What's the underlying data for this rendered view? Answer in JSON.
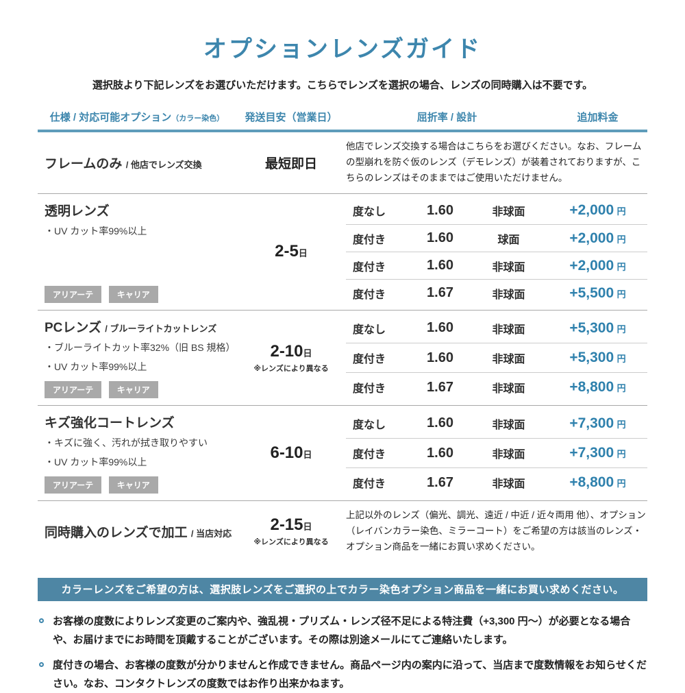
{
  "colors": {
    "accent": "#3d86ad",
    "price": "#2f81ad",
    "banner_bg": "#4e86a4",
    "badge_bg": "#a9a9a9"
  },
  "page": {
    "title": "オプションレンズガイド",
    "subtitle": "選択肢より下記レンズをお選びいただけます。こちらでレンズを選択の場合、レンズの同時購入は不要です。"
  },
  "table": {
    "yen": "円",
    "headers": {
      "spec": "仕様 / 対応可能オプション",
      "spec_small": "（カラー染色）",
      "shipping": "発送目安（営業日）",
      "refraction": "屈折率 / 設計",
      "price": "追加料金"
    },
    "sections": [
      {
        "name": "フレームのみ",
        "suffix": "/ 他店でレンズ交換",
        "shipping_main": "最短即日",
        "note": "他店でレンズ交換する場合はこちらをお選びください。なお、フレームの型崩れを防ぐ仮のレンズ（デモレンズ）が装着されておりますが、こちらのレンズはそのままではご使用いただけません。"
      },
      {
        "name": "透明レンズ",
        "bullets": [
          "・UV カット率99%以上"
        ],
        "badges": [
          "アリアーテ",
          "キャリア"
        ],
        "shipping_main": "2-5",
        "shipping_unit": "日",
        "rows": [
          {
            "power": "度なし",
            "index": "1.60",
            "design": "非球面",
            "price": "+2,000"
          },
          {
            "power": "度付き",
            "index": "1.60",
            "design": "球面",
            "price": "+2,000"
          },
          {
            "power": "度付き",
            "index": "1.60",
            "design": "非球面",
            "price": "+2,000"
          },
          {
            "power": "度付き",
            "index": "1.67",
            "design": "非球面",
            "price": "+5,500"
          }
        ]
      },
      {
        "name": "PCレンズ",
        "suffix": "/ ブルーライトカットレンズ",
        "bullets": [
          "・ブルーライトカット率32%（旧 BS 規格）",
          "・UV カット率99%以上"
        ],
        "badges": [
          "アリアーテ",
          "キャリア"
        ],
        "shipping_main": "2-10",
        "shipping_unit": "日",
        "shipping_note": "※レンズにより異なる",
        "rows": [
          {
            "power": "度なし",
            "index": "1.60",
            "design": "非球面",
            "price": "+5,300"
          },
          {
            "power": "度付き",
            "index": "1.60",
            "design": "非球面",
            "price": "+5,300"
          },
          {
            "power": "度付き",
            "index": "1.67",
            "design": "非球面",
            "price": "+8,800"
          }
        ]
      },
      {
        "name": "キズ強化コートレンズ",
        "bullets": [
          "・キズに強く、汚れが拭き取りやすい",
          "・UV カット率99%以上"
        ],
        "badges": [
          "アリアーテ",
          "キャリア"
        ],
        "shipping_main": "6-10",
        "shipping_unit": "日",
        "rows": [
          {
            "power": "度なし",
            "index": "1.60",
            "design": "非球面",
            "price": "+7,300"
          },
          {
            "power": "度付き",
            "index": "1.60",
            "design": "非球面",
            "price": "+7,300"
          },
          {
            "power": "度付き",
            "index": "1.67",
            "design": "非球面",
            "price": "+8,800"
          }
        ]
      },
      {
        "name": "同時購入のレンズで加工",
        "suffix": "/ 当店対応",
        "shipping_main": "2-15",
        "shipping_unit": "日",
        "shipping_note": "※レンズにより異なる",
        "note": "上記以外のレンズ（偏光、調光、遠近 / 中近 / 近々両用 他）、オプション（レイバンカラー染色、ミラーコート）をご希望の方は該当のレンズ・オプション商品を一緒にお買い求めください。"
      }
    ]
  },
  "banner": {
    "text": "カラーレンズをご希望の方は、選択肢レンズをご選択の上でカラー染色オプション商品を一緒にお買い求めください。"
  },
  "notes": [
    "お客様の度数によりレンズ変更のご案内や、強乱視・プリズム・レンズ径不足による特注費（+3,300 円～）が必要となる場合や、お届けまでにお時間を頂戴することがございます。その際は別途メールにてご連絡いたします。",
    "度付きの場合、お客様の度数が分かりませんと作成できません。商品ページ内の案内に沿って、当店まで度数情報をお知らせください。なお、コンタクトレンズの度数ではお作り出来かねます。"
  ]
}
